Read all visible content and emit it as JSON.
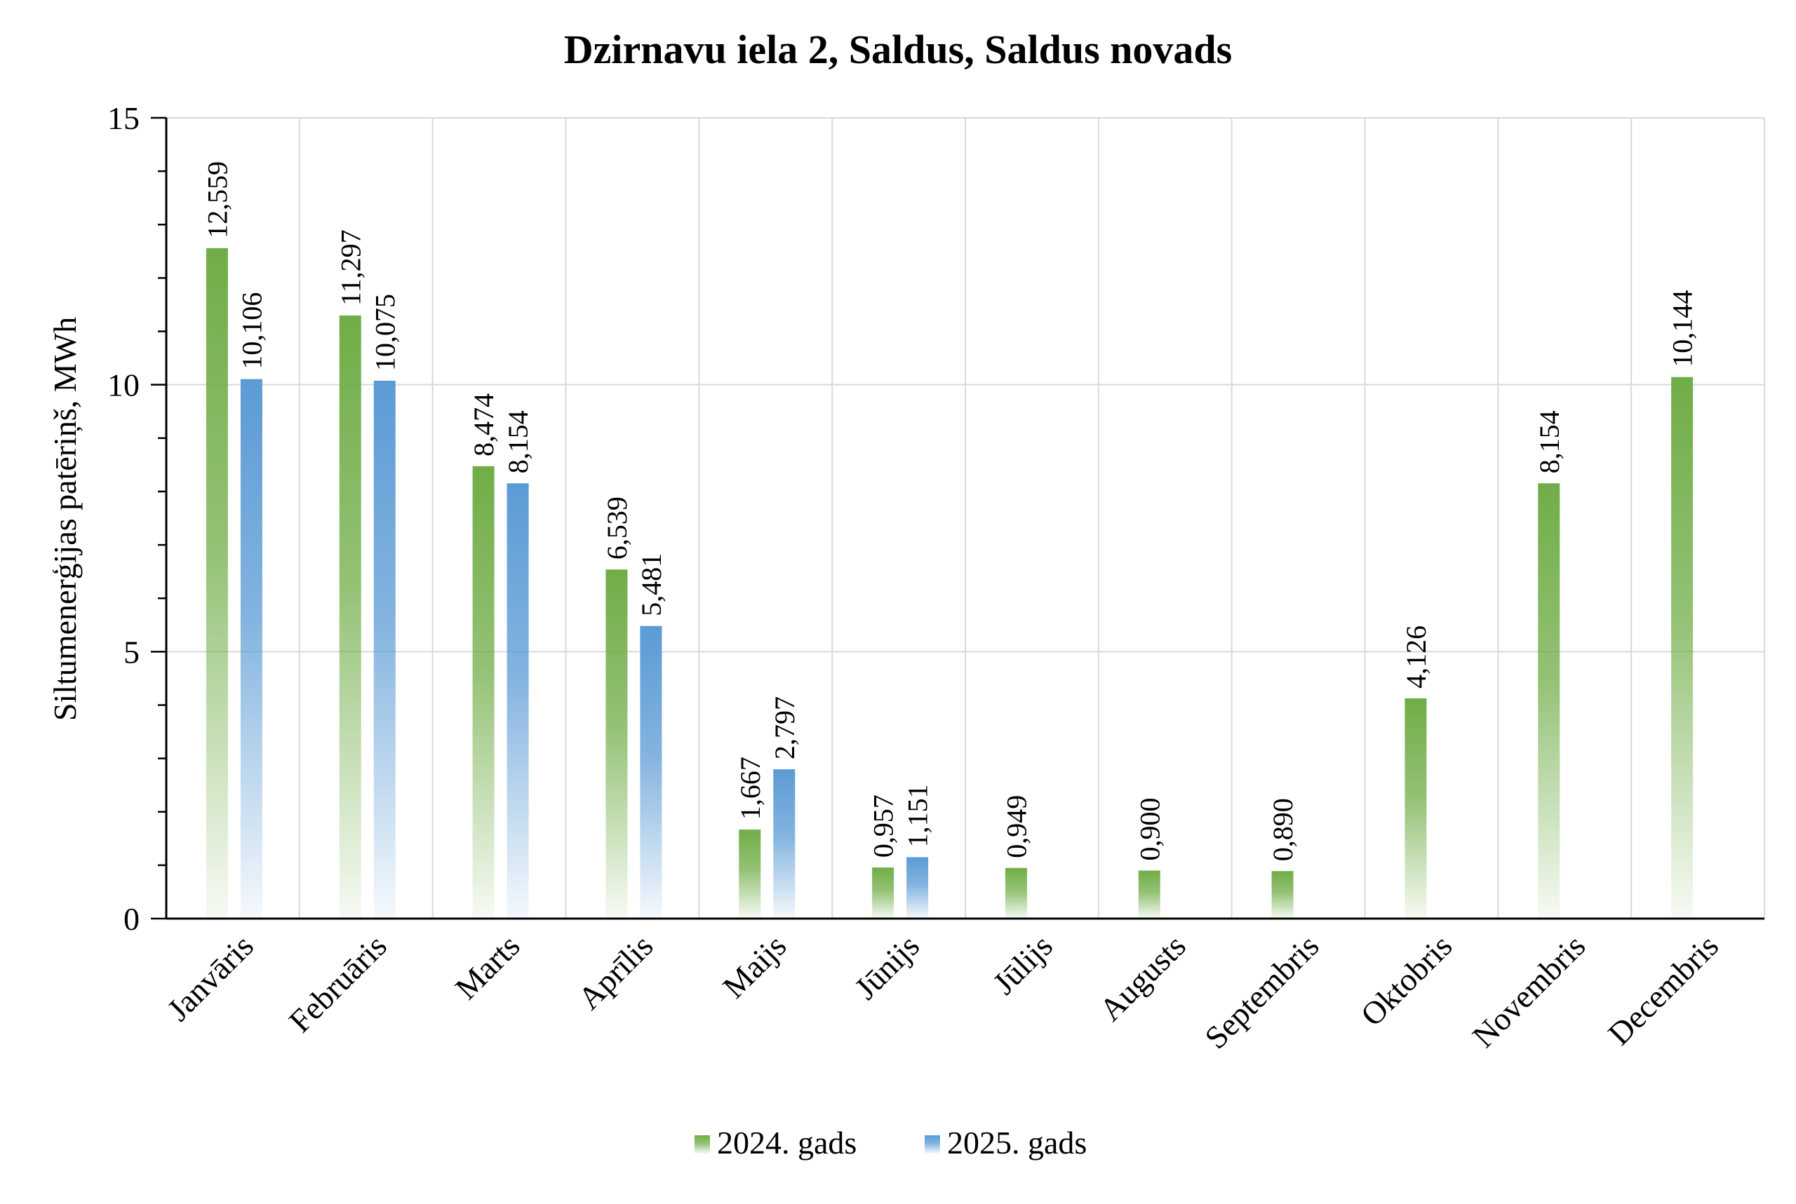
{
  "chart_data": {
    "type": "bar",
    "title": "Dzirnavu iela 2, Saldus, Saldus novads",
    "ylabel": "Siltumenerģijas patēriņš, MWh",
    "xlabel": "",
    "ylim": [
      0,
      15
    ],
    "yticks": [
      0,
      5,
      10,
      15
    ],
    "grid": true,
    "legend_position": "bottom",
    "categories": [
      "Janvāris",
      "Februāris",
      "Marts",
      "Aprīlis",
      "Maijs",
      "Jūnijs",
      "Jūlijs",
      "Augusts",
      "Septembris",
      "Oktobris",
      "Novembris",
      "Decembris"
    ],
    "series": [
      {
        "name": "2024. gads",
        "color": "#70AD47",
        "values": [
          12.559,
          11.297,
          8.474,
          6.539,
          1.667,
          0.957,
          0.949,
          0.9,
          0.89,
          4.126,
          8.154,
          10.144
        ],
        "labels": [
          "12,559",
          "11,297",
          "8,474",
          "6,539",
          "1,667",
          "0,957",
          "0,949",
          "0,900",
          "0,890",
          "4,126",
          "8,154",
          "10,144"
        ]
      },
      {
        "name": "2025. gads",
        "color": "#5B9BD5",
        "values": [
          10.106,
          10.075,
          8.154,
          5.481,
          2.797,
          1.151,
          null,
          null,
          null,
          null,
          null,
          null
        ],
        "labels": [
          "10,106",
          "10,075",
          "8,154",
          "5,481",
          "2,797",
          "1,151",
          "",
          "",
          "",
          "",
          "",
          ""
        ]
      }
    ]
  }
}
